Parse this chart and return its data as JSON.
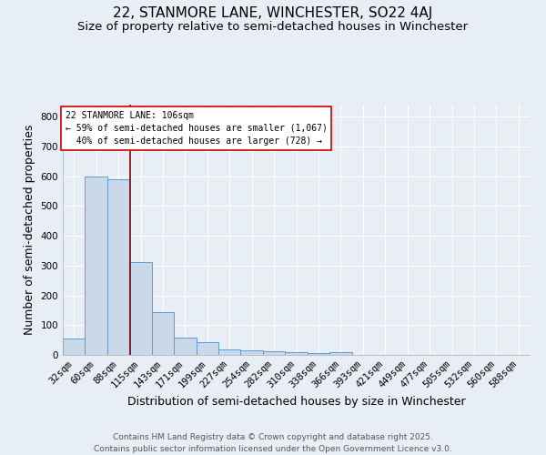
{
  "title": "22, STANMORE LANE, WINCHESTER, SO22 4AJ",
  "subtitle": "Size of property relative to semi-detached houses in Winchester",
  "xlabel": "Distribution of semi-detached houses by size in Winchester",
  "ylabel": "Number of semi-detached properties",
  "footer_line1": "Contains HM Land Registry data © Crown copyright and database right 2025.",
  "footer_line2": "Contains public sector information licensed under the Open Government Licence v3.0.",
  "categories": [
    "32sqm",
    "60sqm",
    "88sqm",
    "115sqm",
    "143sqm",
    "171sqm",
    "199sqm",
    "227sqm",
    "254sqm",
    "282sqm",
    "310sqm",
    "338sqm",
    "366sqm",
    "393sqm",
    "421sqm",
    "449sqm",
    "477sqm",
    "505sqm",
    "532sqm",
    "560sqm",
    "588sqm"
  ],
  "values": [
    55,
    600,
    590,
    312,
    143,
    57,
    42,
    18,
    15,
    11,
    8,
    7,
    9,
    0,
    0,
    0,
    0,
    0,
    0,
    0,
    0
  ],
  "bar_color": "#c9d9ea",
  "bar_edge_color": "#5b9bd5",
  "background_color": "#e8eef5",
  "annotation_text": "22 STANMORE LANE: 106sqm\n← 59% of semi-detached houses are smaller (1,067)\n  40% of semi-detached houses are larger (728) →",
  "vline_x": 2.52,
  "vline_color": "#8b0000",
  "annotation_box_color": "#ffffff",
  "annotation_box_edge": "#cc0000",
  "ylim": [
    0,
    840
  ],
  "yticks": [
    0,
    100,
    200,
    300,
    400,
    500,
    600,
    700,
    800
  ],
  "grid_color": "#ffffff",
  "title_fontsize": 11,
  "subtitle_fontsize": 9.5,
  "axis_label_fontsize": 9,
  "tick_fontsize": 7.5,
  "footer_fontsize": 6.5
}
